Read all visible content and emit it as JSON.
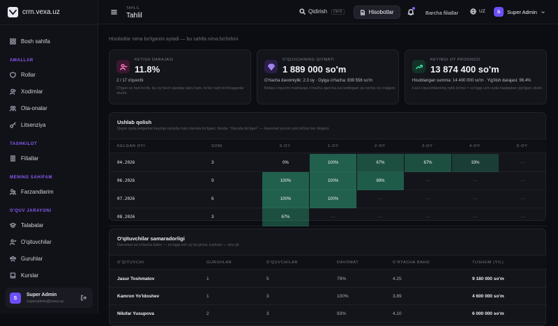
{
  "sidebar": {
    "logo_text": "crm.vexa.uz",
    "items_top": [
      {
        "label": "Bosh sahifa",
        "icon": "grid-icon"
      }
    ],
    "sections": [
      {
        "title": "AMALLAR",
        "items": [
          {
            "label": "Rollar",
            "icon": "shield-icon"
          },
          {
            "label": "Xodimlar",
            "icon": "users-icon"
          },
          {
            "label": "Ota-onalar",
            "icon": "user-group-icon"
          },
          {
            "label": "Litsenziya",
            "icon": "key-icon"
          }
        ]
      },
      {
        "title": "TASHKILOT",
        "items": [
          {
            "label": "Filiallar",
            "icon": "building-icon"
          }
        ]
      },
      {
        "title": "MENING SAHIFAM",
        "items": [
          {
            "label": "Farzandlarim",
            "icon": "child-users-icon"
          }
        ]
      },
      {
        "title": "O'QUV JARAYONI",
        "items": [
          {
            "label": "Talabalar",
            "icon": "student-icon"
          },
          {
            "label": "O'qituvchilar",
            "icon": "teacher-icon"
          },
          {
            "label": "Guruhlar",
            "icon": "group-icon"
          },
          {
            "label": "Kurslar",
            "icon": "book-icon"
          }
        ]
      }
    ],
    "user": {
      "initial": "S",
      "name": "Super Admin",
      "email": "superadmin@vexa.uz"
    }
  },
  "header": {
    "breadcrumb_small": "TAHLIL",
    "title": "Tahlil",
    "search_label": "Qidirish",
    "search_shortcut": "Ctrl K",
    "reports_label": "Hisobotlar",
    "branches_label": "Barcha filiallar",
    "lang": "UZ",
    "user_initial": "S",
    "user_name": "Super Admin"
  },
  "intro": "Hisobotlar nima bo'lganini aytadi — bu sahifa nima bo'lishini",
  "cards": [
    {
      "label": "KETISH DARAJASI",
      "value": "11.8%",
      "sub": "2 / 17 o'quvchi",
      "desc": "O'tgan oy faol bo'lib, bu oy hech qanday dars ham, to'lov ham bo'lmaganlar ulushi.",
      "icon": "user-minus-icon",
      "color": "#f472b6"
    },
    {
      "label": "O'QUVCHINING QIYMATI",
      "value": "1 889 000 so'm",
      "sub": "O'rtacha davomiylik: 2.3 oy · Oyiga o'rtacha: 839 556 so'm",
      "desc": "Birtasi o'quvchi markazga o'rtacha qancha pul keltirgani va necha oy o'qigani.",
      "icon": "gem-icon",
      "color": "#a78bfa"
    },
    {
      "label": "KEYINGI OY PROGNOZI",
      "value": "13 874 400 so'm",
      "sub": "Hisoblangan summa: 14 400 000 so'm · Yig'ilish darajasi: 96.4%",
      "desc": "Faol o'quvchilarning oylik to'lovi × so'nggi uch oyda haqiqatan yig'ilgan ulush.",
      "icon": "trend-up-icon",
      "color": "#34d399"
    }
  ],
  "retention": {
    "title": "Ushlab qolish",
    "subtitle": "Qaysi oyda kelganlar keyingi oylarda ham darsda bo'lgani, foizda. \"Darsda bo'lgan\" — davomat yozuvi yoki to'lovi bor degani.",
    "columns": [
      "KELGAN OYI",
      "SONI",
      "0-OY",
      "1-OY",
      "2-OY",
      "3-OY",
      "4-OY",
      "5-OY"
    ],
    "rows": [
      {
        "month": "04.2026",
        "count": "3",
        "cells": [
          "0%",
          "100%",
          "67%",
          "67%",
          "33%",
          "—"
        ]
      },
      {
        "month": "06.2026",
        "count": "9",
        "cells": [
          "100%",
          "100%",
          "89%",
          "—",
          "—",
          "—"
        ]
      },
      {
        "month": "07.2026",
        "count": "6",
        "cells": [
          "100%",
          "100%",
          "—",
          "—",
          "—",
          "—"
        ]
      },
      {
        "month": "08.2026",
        "count": "3",
        "cells": [
          "67%",
          "—",
          "—",
          "—",
          "—",
          "—"
        ]
      }
    ]
  },
  "teachers": {
    "title": "O'qituvchilar samaradorligi",
    "subtitle": "Davomat va o'rtacha baho — so'nggi uch oy bo'yicha; tushum — shu yil.",
    "columns": [
      "O'QITUVCHI",
      "GURUHLAR",
      "O'QUVCHILAR",
      "DAVOMAT",
      "O'RTACHA BAHO",
      "TUSHUM (YIL)"
    ],
    "rows": [
      {
        "name": "Jasur Toshmatov",
        "groups": "1",
        "students": "5",
        "attendance": "79%",
        "grade": "4.25",
        "revenue": "9 180 000 so'm"
      },
      {
        "name": "Kamron Yo'ldoshev",
        "groups": "1",
        "students": "3",
        "attendance": "100%",
        "grade": "3.89",
        "revenue": "4 600 000 so'm"
      },
      {
        "name": "Nilufar Yusupova",
        "groups": "2",
        "students": "3",
        "attendance": "93%",
        "grade": "4.10",
        "revenue": "6 000 000 so'm"
      }
    ]
  }
}
